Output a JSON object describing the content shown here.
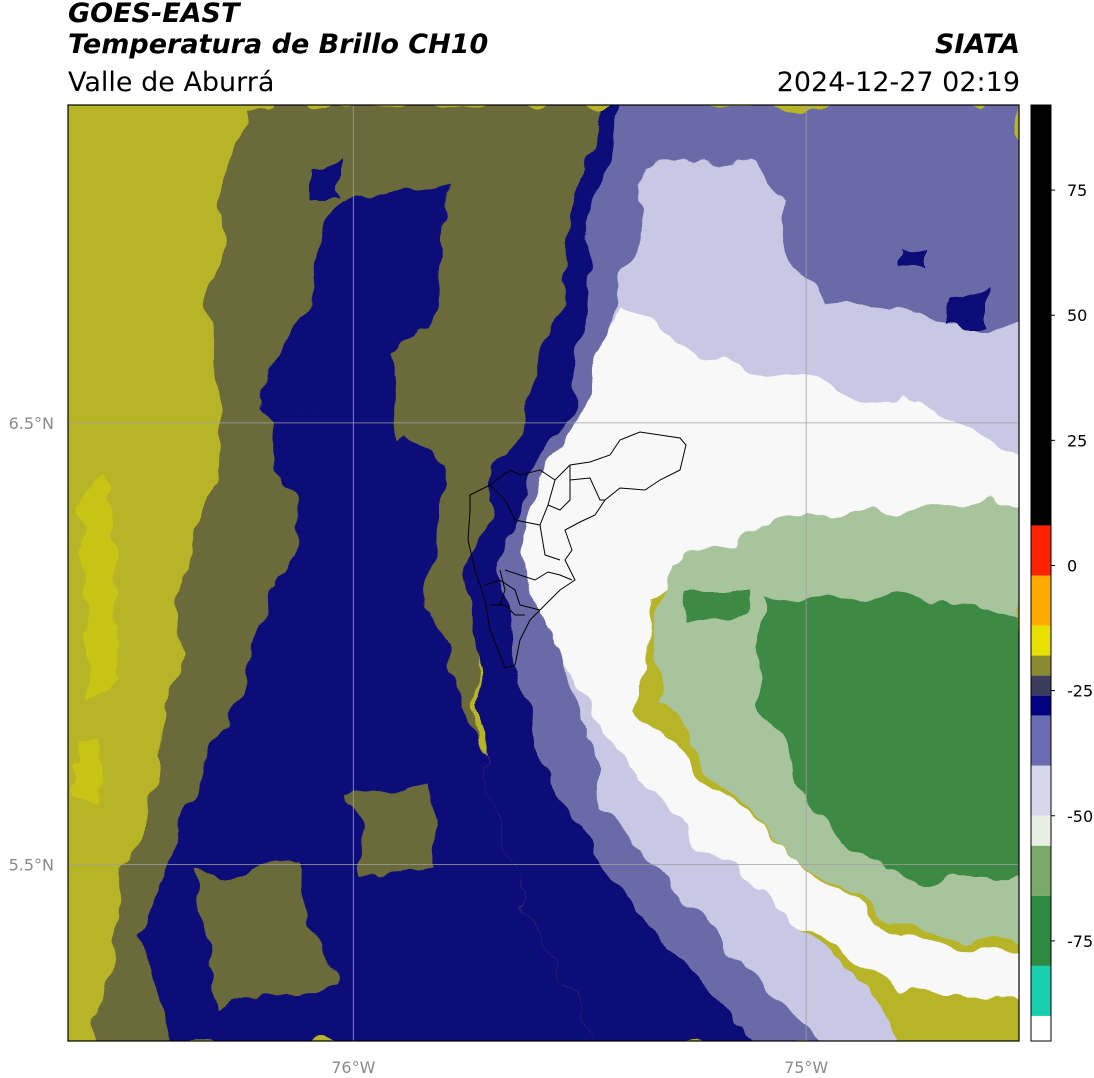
{
  "header": {
    "satellite": "GOES-EAST",
    "product": "Temperatura de Brillo CH10",
    "region": "Valle de Aburrá",
    "agency": "SIATA",
    "datetime": "2024-12-27 02:19"
  },
  "map": {
    "lat_labels": [
      {
        "text": "6.5°N",
        "value": 6.5
      },
      {
        "text": "5.5°N",
        "value": 5.5
      }
    ],
    "lon_labels": [
      {
        "text": "76°W",
        "value": -76
      },
      {
        "text": "75°W",
        "value": -75
      }
    ],
    "lat_range": [
      5.1,
      7.22
    ],
    "lon_range": [
      -76.63,
      -74.53
    ],
    "gridlines": true
  },
  "colorbar": {
    "ticks": [
      75,
      50,
      25,
      0,
      -25,
      -50,
      -75
    ],
    "range": [
      -95,
      92
    ],
    "units_note": "",
    "segments": [
      {
        "from": 92,
        "to": 8,
        "color": "#000000"
      },
      {
        "from": 8,
        "to": -2,
        "color": "#ff2200"
      },
      {
        "from": -2,
        "to": -12,
        "color": "#ffaa00"
      },
      {
        "from": -12,
        "to": -18,
        "color": "#e8e000"
      },
      {
        "from": -18,
        "to": -22,
        "color": "#8a8a30"
      },
      {
        "from": -22,
        "to": -26,
        "color": "#3c3c5c"
      },
      {
        "from": -26,
        "to": -30,
        "color": "#000080"
      },
      {
        "from": -30,
        "to": -40,
        "color": "#6a6ab0"
      },
      {
        "from": -40,
        "to": -50,
        "color": "#d8d8ec"
      },
      {
        "from": -50,
        "to": -56,
        "color": "#e8f0e4"
      },
      {
        "from": -56,
        "to": -66,
        "color": "#7aaa6a"
      },
      {
        "from": -66,
        "to": -80,
        "color": "#2e8a40"
      },
      {
        "from": -80,
        "to": -90,
        "color": "#18d0b0"
      },
      {
        "from": -90,
        "to": -95,
        "color": "#ffffff"
      }
    ]
  },
  "colors": {
    "dry_yellow": "#b8b428",
    "olive": "#6a6a3a",
    "navy": "#10107a",
    "purple": "#6a6aa8",
    "lavender": "#c8c8e4",
    "white": "#f8f8f8",
    "light_green": "#a8c49c",
    "green": "#3e8a44",
    "boundary": "#000000",
    "grid": "#a0a0a0"
  }
}
